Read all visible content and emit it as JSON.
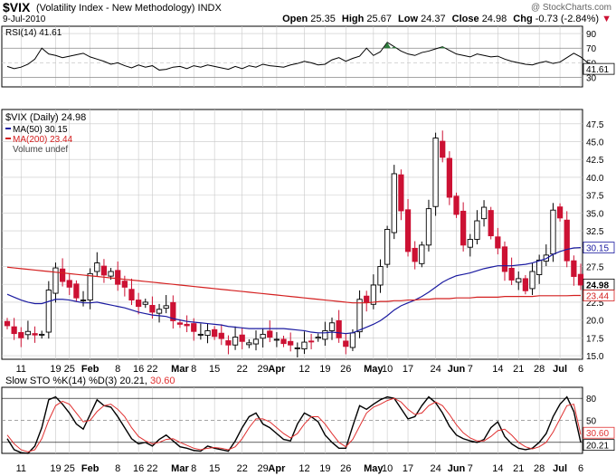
{
  "header": {
    "symbol": "$VIX",
    "name": "(Volatility Index - New Methodology)",
    "exchange": "INDX",
    "date": "9-Jul-2010",
    "copyright": "@ StockCharts.com",
    "open_label": "Open",
    "open": "25.35",
    "high_label": "High",
    "high": "25.67",
    "low_label": "Low",
    "low": "24.37",
    "close_label": "Close",
    "close": "24.98",
    "chg_label": "Chg",
    "chg": "-0.73 (-2.84%)",
    "chg_arrow": "▼"
  },
  "colors": {
    "up": "#000000",
    "down": "#cc1133",
    "ma50": "#1a1aa0",
    "ma200": "#d42020",
    "grid": "#c8c8c8",
    "rsi_over": "#2c7a3a",
    "sto_d": "#e03030"
  },
  "chart_data": [
    {
      "type": "line",
      "panel": "rsi",
      "legend": [
        "RSI(14) 41.61"
      ],
      "yticks": [
        90,
        70,
        50,
        30
      ],
      "ylim": [
        17,
        100
      ],
      "right_badge": "41.61",
      "values": [
        45,
        42,
        44,
        48,
        55,
        70,
        62,
        60,
        57,
        59,
        61,
        63,
        58,
        55,
        52,
        48,
        50,
        46,
        43,
        47,
        44,
        46,
        40,
        41,
        44,
        45,
        42,
        46,
        44,
        47,
        45,
        43,
        41,
        45,
        42,
        46,
        44,
        48,
        46,
        45,
        44,
        47,
        49,
        52,
        50,
        47,
        48,
        54,
        57,
        52,
        56,
        59,
        70,
        60,
        65,
        78,
        72,
        66,
        62,
        60,
        64,
        66,
        69,
        72,
        67,
        62,
        60,
        58,
        62,
        60,
        58,
        59,
        55,
        52,
        50,
        48,
        47,
        50,
        52,
        49,
        51,
        57,
        63,
        58,
        50,
        45,
        43,
        42
      ]
    },
    {
      "type": "candlestick",
      "panel": "price",
      "legend": [
        "$VIX (Daily) 24.98",
        "MA(50) 30.15",
        "MA(200) 23.44",
        "Volume undef"
      ],
      "yticks": [
        47.5,
        45.0,
        42.5,
        40.0,
        37.5,
        35.0,
        32.5,
        30.0,
        27.5,
        25.0,
        22.5,
        20.0,
        17.5,
        15.0
      ],
      "ylim": [
        14.5,
        49.5
      ],
      "x_labels": [
        "11",
        "19",
        "25",
        "Feb",
        "8",
        "16",
        "22",
        "Mar",
        "8",
        "15",
        "22",
        "29",
        "Apr",
        "12",
        "19",
        "26",
        "May",
        "10",
        "17",
        "24",
        "Jun",
        "7",
        "14",
        "21",
        "28",
        "Jul",
        "6"
      ],
      "right_badges": [
        "30.15",
        "24.98",
        "23.44"
      ],
      "close": [
        19.2,
        18.1,
        17.5,
        18.4,
        17.9,
        18.0,
        24.2,
        27.3,
        25.4,
        24.6,
        23.1,
        22.8,
        26.5,
        28.0,
        26.3,
        26.8,
        25.0,
        24.6,
        22.8,
        21.9,
        22.5,
        21.1,
        21.5,
        22.0,
        19.9,
        19.4,
        19.2,
        18.4,
        18.0,
        18.5,
        17.7,
        17.4,
        16.5,
        17.6,
        17.0,
        16.8,
        17.3,
        18.0,
        17.6,
        17.3,
        16.7,
        16.5,
        16.1,
        16.9,
        17.0,
        17.6,
        18.5,
        19.6,
        17.5,
        16.3,
        18.2,
        22.9,
        22.5,
        24.9,
        27.5,
        32.7,
        40.5,
        35.3,
        29.6,
        28.2,
        30.5,
        35.6,
        45.5,
        42.8,
        37.2,
        34.8,
        30.5,
        31.3,
        33.9,
        35.8,
        31.8,
        30.1,
        26.8,
        25.6,
        25.8,
        24.1,
        26.8,
        28.4,
        29.1,
        35.4,
        34.3,
        28.3,
        26.1,
        24.9
      ],
      "ma50": [
        23.6,
        23.2,
        22.8,
        22.5,
        22.3,
        22.3,
        22.6,
        22.9,
        22.9,
        22.8,
        22.6,
        22.4,
        22.4,
        22.5,
        22.3,
        22.1,
        21.9,
        21.7,
        21.4,
        21.1,
        20.9,
        20.7,
        20.6,
        20.5,
        20.2,
        20.0,
        19.8,
        19.7,
        19.6,
        19.5,
        19.4,
        19.3,
        19.1,
        19.0,
        18.9,
        18.8,
        18.8,
        18.8,
        18.8,
        18.8,
        18.8,
        18.7,
        18.6,
        18.5,
        18.3,
        18.2,
        18.2,
        18.3,
        18.2,
        18.1,
        18.2,
        18.6,
        19.0,
        19.4,
        19.9,
        20.6,
        21.4,
        22.0,
        22.4,
        22.8,
        23.3,
        23.9,
        24.6,
        25.3,
        25.8,
        26.2,
        26.4,
        26.6,
        26.9,
        27.2,
        27.4,
        27.6,
        27.6,
        27.6,
        27.7,
        27.8,
        28.0,
        28.3,
        28.6,
        29.2,
        29.6,
        29.9,
        30.1,
        30.15
      ],
      "ma200": [
        27.4,
        27.3,
        27.2,
        27.1,
        27.0,
        26.9,
        26.8,
        26.7,
        26.6,
        26.5,
        26.4,
        26.3,
        26.2,
        26.1,
        26.0,
        25.9,
        25.8,
        25.7,
        25.6,
        25.5,
        25.4,
        25.3,
        25.2,
        25.1,
        25.0,
        24.9,
        24.8,
        24.7,
        24.6,
        24.5,
        24.4,
        24.3,
        24.2,
        24.1,
        24.0,
        23.9,
        23.8,
        23.7,
        23.6,
        23.5,
        23.4,
        23.3,
        23.2,
        23.1,
        23.0,
        22.9,
        22.8,
        22.7,
        22.6,
        22.5,
        22.4,
        22.4,
        22.4,
        22.5,
        22.6,
        22.6,
        22.7,
        22.7,
        22.8,
        22.8,
        22.9,
        22.9,
        23.0,
        23.0,
        23.0,
        23.1,
        23.1,
        23.1,
        23.2,
        23.2,
        23.2,
        23.2,
        23.3,
        23.3,
        23.3,
        23.3,
        23.3,
        23.4,
        23.4,
        23.4,
        23.4,
        23.4,
        23.44,
        23.44
      ]
    },
    {
      "type": "line",
      "panel": "stochastic",
      "legend": [
        "Slow STO %K(14) %D(3) 20.21, 30.60"
      ],
      "yticks": [
        80,
        50,
        20
      ],
      "ylim": [
        5,
        95
      ],
      "right_badges": [
        "30.60",
        "20.21"
      ],
      "k": [
        25,
        10,
        6,
        5,
        15,
        40,
        78,
        82,
        72,
        60,
        45,
        38,
        58,
        78,
        70,
        68,
        55,
        40,
        25,
        18,
        20,
        15,
        24,
        30,
        22,
        14,
        12,
        9,
        8,
        15,
        12,
        10,
        8,
        22,
        40,
        55,
        60,
        45,
        40,
        32,
        24,
        22,
        45,
        60,
        55,
        48,
        30,
        20,
        12,
        12,
        42,
        70,
        65,
        72,
        78,
        82,
        80,
        66,
        52,
        55,
        70,
        82,
        74,
        60,
        42,
        30,
        25,
        22,
        20,
        24,
        40,
        48,
        28,
        18,
        12,
        10,
        12,
        20,
        32,
        55,
        72,
        82,
        62,
        20
      ],
      "d": [
        30,
        18,
        10,
        7,
        10,
        25,
        50,
        70,
        76,
        72,
        60,
        48,
        50,
        62,
        70,
        72,
        65,
        55,
        40,
        28,
        22,
        18,
        20,
        24,
        25,
        20,
        16,
        12,
        10,
        12,
        13,
        12,
        10,
        14,
        25,
        40,
        52,
        52,
        48,
        40,
        32,
        26,
        32,
        45,
        55,
        55,
        45,
        32,
        20,
        14,
        24,
        42,
        60,
        68,
        72,
        77,
        80,
        75,
        65,
        58,
        60,
        70,
        75,
        70,
        58,
        44,
        33,
        26,
        22,
        22,
        28,
        36,
        38,
        30,
        20,
        14,
        11,
        14,
        20,
        34,
        52,
        70,
        72,
        30.6
      ]
    }
  ]
}
